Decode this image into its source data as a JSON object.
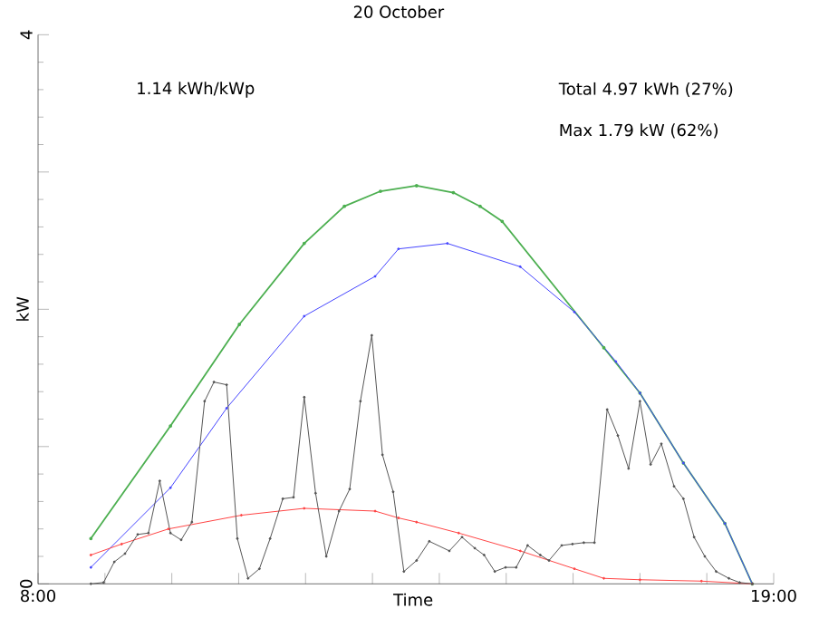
{
  "chart_data": {
    "type": "line",
    "title": "20 October",
    "xlabel": "Time",
    "ylabel": "kW",
    "annotations": [
      "1.14 kWh/kWp",
      "Total 4.97 kWh (27%)",
      "Max 1.79 kW (62%)"
    ],
    "xlim": [
      8,
      19
    ],
    "ylim": [
      0,
      4
    ],
    "xticks": [
      {
        "value": 8,
        "label": "8:00"
      },
      {
        "value": 9,
        "label": null
      },
      {
        "value": 10,
        "label": null
      },
      {
        "value": 11,
        "label": null
      },
      {
        "value": 12,
        "label": null
      },
      {
        "value": 13,
        "label": null
      },
      {
        "value": 14,
        "label": null
      },
      {
        "value": 15,
        "label": null
      },
      {
        "value": 16,
        "label": null
      },
      {
        "value": 17,
        "label": null
      },
      {
        "value": 18,
        "label": null
      },
      {
        "value": 19,
        "label": "19:00"
      }
    ],
    "yticks": [
      0,
      {
        "value": 1,
        "label": null
      },
      {
        "value": 2,
        "label": null
      },
      {
        "value": 3,
        "label": null
      },
      4
    ],
    "tick_labels": "xy",
    "marker": "circle",
    "line_style": "solid",
    "series": [
      {
        "color": "#4caf50",
        "x": [
          8.79,
          9.98,
          11.01,
          11.98,
          12.58,
          13.12,
          13.66,
          14.21,
          14.61,
          14.94,
          16.46,
          17.0,
          17.65,
          18.27,
          18.68
        ],
        "values": [
          0.33,
          1.15,
          1.89,
          2.48,
          2.75,
          2.86,
          2.9,
          2.85,
          2.75,
          2.64,
          1.72,
          1.39,
          0.88,
          0.44,
          0
        ]
      },
      {
        "color": "#4444ff",
        "x": [
          8.79,
          9.98,
          10.82,
          11.98,
          13.04,
          13.39,
          14.12,
          15.21,
          16.02,
          16.64,
          17.0,
          17.65,
          18.27,
          18.68
        ],
        "values": [
          0.12,
          0.7,
          1.28,
          1.95,
          2.24,
          2.44,
          2.48,
          2.31,
          1.98,
          1.62,
          1.39,
          0.88,
          0.44,
          0
        ]
      },
      {
        "color": "#ff4444",
        "x": [
          8.79,
          9.25,
          9.95,
          11.04,
          11.98,
          13.04,
          13.39,
          13.66,
          14.29,
          15.21,
          16.02,
          16.46,
          17.0,
          17.92,
          18.68
        ],
        "values": [
          0.21,
          0.29,
          0.4,
          0.5,
          0.55,
          0.53,
          0.48,
          0.45,
          0.37,
          0.24,
          0.11,
          0.04,
          0.03,
          0.02,
          0
        ]
      },
      {
        "color": "#555555",
        "x": [
          8.79,
          8.98,
          9.14,
          9.3,
          9.49,
          9.65,
          9.82,
          9.98,
          10.14,
          10.3,
          10.49,
          10.63,
          10.82,
          10.98,
          11.14,
          11.31,
          11.47,
          11.66,
          11.82,
          11.98,
          12.15,
          12.31,
          12.5,
          12.66,
          12.82,
          12.99,
          13.15,
          13.31,
          13.47,
          13.66,
          13.85,
          14.15,
          14.34,
          14.53,
          14.67,
          14.83,
          14.99,
          15.15,
          15.32,
          15.51,
          15.64,
          15.83,
          15.99,
          16.16,
          16.32,
          16.51,
          16.67,
          16.83,
          17.0,
          17.16,
          17.32,
          17.51,
          17.65,
          17.81,
          17.97,
          18.14,
          18.33,
          18.49,
          18.68
        ],
        "values": [
          0,
          0.01,
          0.16,
          0.22,
          0.36,
          0.37,
          0.75,
          0.37,
          0.32,
          0.45,
          1.33,
          1.47,
          1.45,
          0.33,
          0.04,
          0.11,
          0.33,
          0.62,
          0.63,
          1.36,
          0.66,
          0.2,
          0.53,
          0.69,
          1.33,
          1.81,
          0.94,
          0.67,
          0.09,
          0.17,
          0.31,
          0.24,
          0.34,
          0.26,
          0.21,
          0.09,
          0.12,
          0.12,
          0.28,
          0.21,
          0.17,
          0.28,
          0.29,
          0.3,
          0.3,
          1.27,
          1.08,
          0.84,
          1.33,
          0.87,
          1.02,
          0.71,
          0.62,
          0.34,
          0.2,
          0.09,
          0.04,
          0.01,
          0
        ]
      }
    ]
  }
}
